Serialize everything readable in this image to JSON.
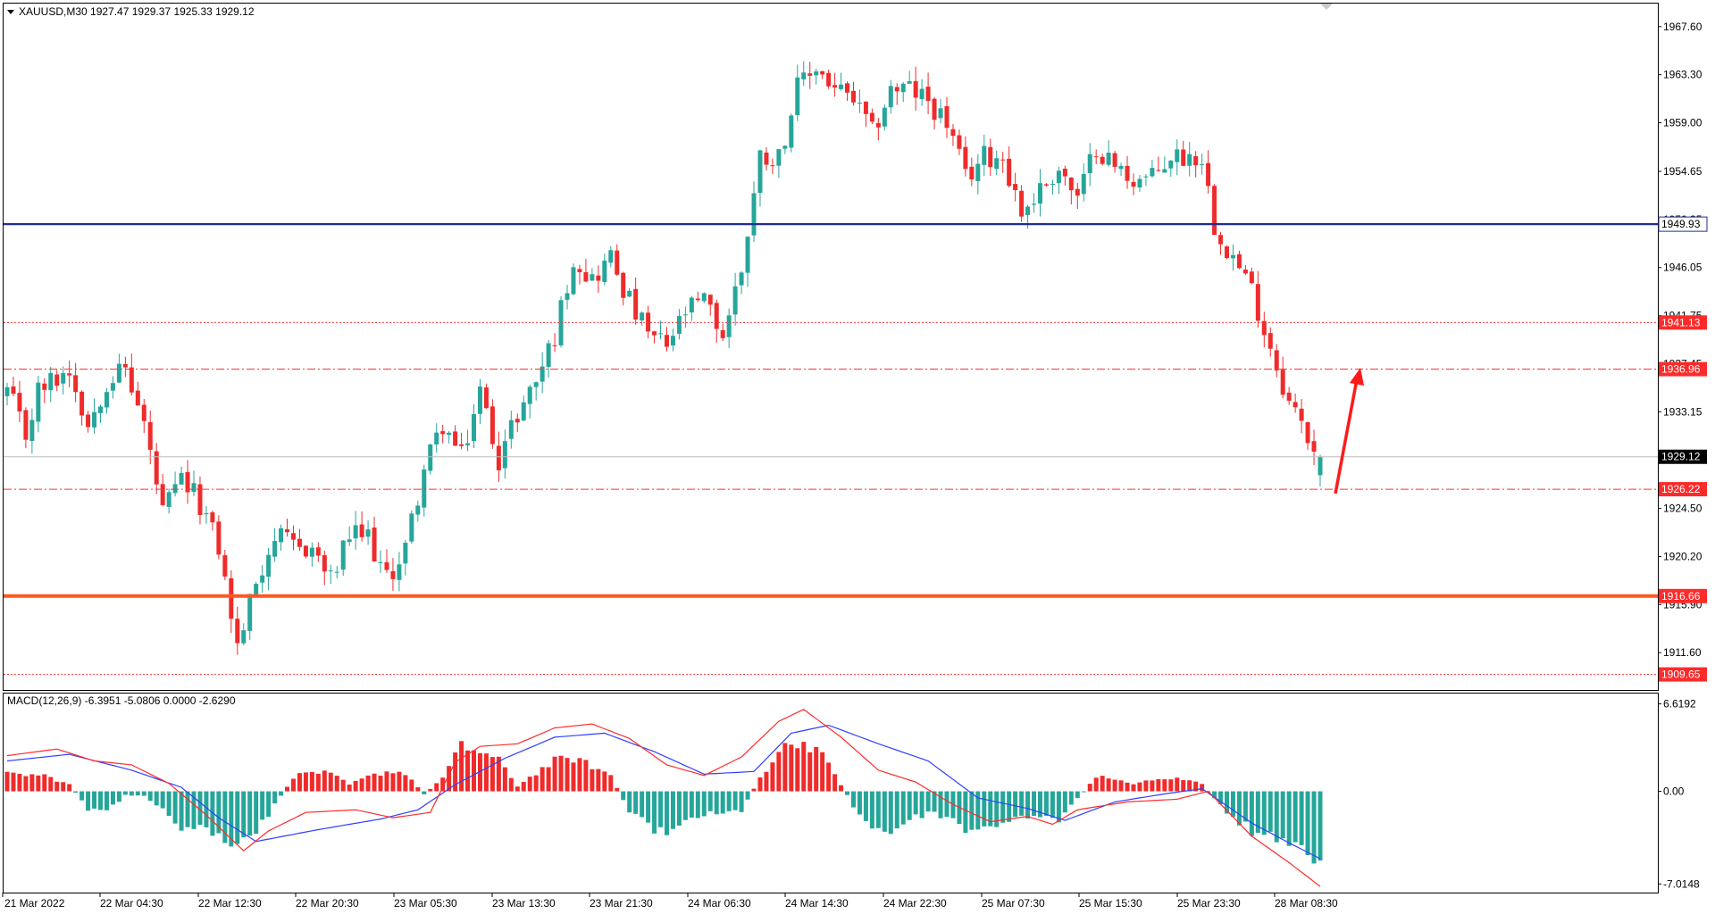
{
  "header": {
    "symbol_label": "XAUUSD,M30  1927.47 1929.37 1925.33 1929.12"
  },
  "colors": {
    "bull": "#26a69a",
    "bear": "#ef2b2b",
    "blue_line": "#1f2d8f",
    "orange_line": "#ff5722",
    "red_level": "#ff3333",
    "price_tag_bg": "#000000",
    "macd_signal": "#2f3fff",
    "macd_main": "#ff2a2a",
    "arrow": "#ff1a1a"
  },
  "chart_data": [
    {
      "type": "candlestick",
      "timeframe": "M30",
      "symbol": "XAUUSD",
      "ohlc_last": {
        "open": 1927.47,
        "high": 1929.37,
        "low": 1925.33,
        "close": 1929.12
      },
      "ylim": [
        1908.5,
        1969.5
      ],
      "y_ticks": [
        "1967.60",
        "1963.30",
        "1959.00",
        "1954.65",
        "1950.35",
        "1946.05",
        "1941.75",
        "1937.45",
        "1933.15",
        "1929.12",
        "1924.50",
        "1920.20",
        "1915.90",
        "1911.60"
      ],
      "x_ticks": [
        "21 Mar 2022",
        "22 Mar 04:30",
        "22 Mar 12:30",
        "22 Mar 20:30",
        "23 Mar 05:30",
        "23 Mar 13:30",
        "23 Mar 21:30",
        "24 Mar 06:30",
        "24 Mar 14:30",
        "24 Mar 22:30",
        "25 Mar 07:30",
        "25 Mar 15:30",
        "25 Mar 23:30",
        "28 Mar 08:30"
      ],
      "anchors": [
        [
          0,
          1935
        ],
        [
          3,
          1931
        ],
        [
          5,
          1935
        ],
        [
          10,
          1937
        ],
        [
          13,
          1932
        ],
        [
          16,
          1936
        ],
        [
          19,
          1937
        ],
        [
          22,
          1932
        ],
        [
          25,
          1924
        ],
        [
          28,
          1927
        ],
        [
          31,
          1925
        ],
        [
          34,
          1921
        ],
        [
          37,
          1912
        ],
        [
          40,
          1918
        ],
        [
          43,
          1922
        ],
        [
          46,
          1921
        ],
        [
          49,
          1921
        ],
        [
          52,
          1918
        ],
        [
          55,
          1922
        ],
        [
          58,
          1922
        ],
        [
          61,
          1918
        ],
        [
          64,
          1921
        ],
        [
          67,
          1928
        ],
        [
          70,
          1932
        ],
        [
          73,
          1929
        ],
        [
          76,
          1935
        ],
        [
          79,
          1929
        ],
        [
          82,
          1933
        ],
        [
          85,
          1936
        ],
        [
          88,
          1940
        ],
        [
          91,
          1947
        ],
        [
          94,
          1945
        ],
        [
          97,
          1947
        ],
        [
          100,
          1943
        ],
        [
          103,
          1940
        ],
        [
          106,
          1939
        ],
        [
          109,
          1942
        ],
        [
          112,
          1943
        ],
        [
          115,
          1940
        ],
        [
          118,
          1946
        ],
        [
          121,
          1956
        ],
        [
          124,
          1956
        ],
        [
          127,
          1962
        ],
        [
          130,
          1964
        ],
        [
          133,
          1962
        ],
        [
          136,
          1961
        ],
        [
          139,
          1958
        ],
        [
          142,
          1962
        ],
        [
          145,
          1962
        ],
        [
          148,
          1961
        ],
        [
          151,
          1959
        ],
        [
          154,
          1954
        ],
        [
          157,
          1956
        ],
        [
          160,
          1956
        ],
        [
          163,
          1951
        ],
        [
          166,
          1953
        ],
        [
          169,
          1955
        ],
        [
          172,
          1952
        ],
        [
          175,
          1957
        ],
        [
          178,
          1955
        ],
        [
          181,
          1954
        ],
        [
          184,
          1954
        ],
        [
          187,
          1956
        ],
        [
          190,
          1956
        ],
        [
          192,
          1956
        ],
        [
          194,
          1950
        ],
        [
          197,
          1947
        ],
        [
          200,
          1944
        ],
        [
          203,
          1939
        ],
        [
          206,
          1934
        ],
        [
          209,
          1931
        ],
        [
          211,
          1929
        ]
      ],
      "levels": [
        {
          "price": 1949.93,
          "label": "1949.93",
          "style": "solid",
          "color": "blue_line",
          "tag": "plain"
        },
        {
          "price": 1941.13,
          "label": "1941.13",
          "style": "dotted",
          "color": "red_level",
          "tag": "red"
        },
        {
          "price": 1936.96,
          "label": "1936.96",
          "style": "dashdot",
          "color": "red_level",
          "tag": "red"
        },
        {
          "price": 1929.12,
          "label": "1929.12",
          "style": "solid-grey",
          "color": "price_tag_bg",
          "tag": "black"
        },
        {
          "price": 1926.22,
          "label": "1926.22",
          "style": "dashdot",
          "color": "red_level",
          "tag": "red"
        },
        {
          "price": 1916.66,
          "label": "1916.66",
          "style": "thick",
          "color": "orange_line",
          "tag": "red"
        },
        {
          "price": 1909.65,
          "label": "1909.65",
          "style": "dotted",
          "color": "red_level",
          "tag": "red"
        }
      ]
    },
    {
      "type": "macd",
      "label": "MACD(12,26,9) -6.3951 -5.0806 0.0000 -2.6290",
      "ylim": [
        -7.6,
        7.2
      ],
      "y_ticks": [
        "6.6192",
        "0.00",
        "-7.0148"
      ],
      "hist_anchors": [
        [
          0,
          1.3
        ],
        [
          6,
          1.2
        ],
        [
          10,
          0.5
        ],
        [
          13,
          -1.3
        ],
        [
          16,
          -1.6
        ],
        [
          19,
          -0.3
        ],
        [
          22,
          -0.3
        ],
        [
          25,
          -1.5
        ],
        [
          28,
          -3.3
        ],
        [
          31,
          -2.6
        ],
        [
          34,
          -3.4
        ],
        [
          37,
          -4.4
        ],
        [
          40,
          -3.2
        ],
        [
          43,
          -1.0
        ],
        [
          46,
          1.1
        ],
        [
          49,
          1.5
        ],
        [
          52,
          1.3
        ],
        [
          55,
          0.5
        ],
        [
          58,
          1.1
        ],
        [
          61,
          1.5
        ],
        [
          64,
          1.4
        ],
        [
          67,
          -0.2
        ],
        [
          70,
          1.0
        ],
        [
          73,
          3.4
        ],
        [
          76,
          3.0
        ],
        [
          79,
          2.3
        ],
        [
          82,
          0.4
        ],
        [
          85,
          1.4
        ],
        [
          88,
          2.3
        ],
        [
          91,
          2.5
        ],
        [
          94,
          1.9
        ],
        [
          97,
          1.2
        ],
        [
          100,
          -1.6
        ],
        [
          103,
          -2.6
        ],
        [
          106,
          -3.2
        ],
        [
          109,
          -2.1
        ],
        [
          112,
          -1.8
        ],
        [
          115,
          -1.6
        ],
        [
          118,
          -1.4
        ],
        [
          121,
          1.0
        ],
        [
          124,
          3.1
        ],
        [
          127,
          3.8
        ],
        [
          130,
          3.3
        ],
        [
          133,
          1.3
        ],
        [
          136,
          -1.1
        ],
        [
          139,
          -2.8
        ],
        [
          142,
          -3.0
        ],
        [
          145,
          -2.2
        ],
        [
          148,
          -1.6
        ],
        [
          151,
          -1.9
        ],
        [
          154,
          -2.9
        ],
        [
          157,
          -2.8
        ],
        [
          160,
          -2.3
        ],
        [
          163,
          -1.8
        ],
        [
          166,
          -2.1
        ],
        [
          169,
          -2.1
        ],
        [
          172,
          -0.6
        ],
        [
          175,
          1.2
        ],
        [
          178,
          0.8
        ],
        [
          181,
          0.6
        ],
        [
          184,
          0.8
        ],
        [
          187,
          1.0
        ],
        [
          190,
          0.8
        ],
        [
          192,
          0.6
        ],
        [
          194,
          -0.6
        ],
        [
          197,
          -2.0
        ],
        [
          200,
          -3.0
        ],
        [
          203,
          -3.6
        ],
        [
          206,
          -4.3
        ],
        [
          209,
          -4.7
        ],
        [
          211,
          -4.9
        ]
      ],
      "signal_anchors": [
        [
          0,
          2.3
        ],
        [
          10,
          2.8
        ],
        [
          20,
          1.6
        ],
        [
          28,
          0.3
        ],
        [
          34,
          -2.0
        ],
        [
          40,
          -3.8
        ],
        [
          50,
          -2.9
        ],
        [
          60,
          -2.1
        ],
        [
          66,
          -1.4
        ],
        [
          72,
          0.5
        ],
        [
          80,
          2.5
        ],
        [
          88,
          4.1
        ],
        [
          96,
          4.4
        ],
        [
          104,
          3.0
        ],
        [
          112,
          1.3
        ],
        [
          120,
          1.5
        ],
        [
          126,
          4.4
        ],
        [
          132,
          5.0
        ],
        [
          140,
          3.6
        ],
        [
          148,
          2.3
        ],
        [
          156,
          -0.5
        ],
        [
          164,
          -1.3
        ],
        [
          170,
          -2.2
        ],
        [
          178,
          -0.8
        ],
        [
          186,
          -0.2
        ],
        [
          192,
          0.2
        ],
        [
          200,
          -2.4
        ],
        [
          206,
          -3.9
        ],
        [
          211,
          -5.1
        ]
      ],
      "main_anchors": [
        [
          0,
          2.7
        ],
        [
          8,
          3.2
        ],
        [
          14,
          2.3
        ],
        [
          20,
          2.0
        ],
        [
          26,
          0.6
        ],
        [
          32,
          -1.8
        ],
        [
          38,
          -4.5
        ],
        [
          42,
          -3.0
        ],
        [
          48,
          -1.6
        ],
        [
          56,
          -1.4
        ],
        [
          62,
          -2.0
        ],
        [
          68,
          -1.6
        ],
        [
          72,
          2.2
        ],
        [
          76,
          3.4
        ],
        [
          82,
          3.6
        ],
        [
          88,
          4.8
        ],
        [
          94,
          5.1
        ],
        [
          100,
          4.0
        ],
        [
          106,
          2.0
        ],
        [
          112,
          1.2
        ],
        [
          118,
          2.6
        ],
        [
          124,
          5.3
        ],
        [
          128,
          6.2
        ],
        [
          134,
          4.1
        ],
        [
          140,
          1.6
        ],
        [
          146,
          0.7
        ],
        [
          152,
          -1.0
        ],
        [
          158,
          -2.3
        ],
        [
          164,
          -1.9
        ],
        [
          168,
          -2.5
        ],
        [
          172,
          -1.4
        ],
        [
          180,
          -0.8
        ],
        [
          188,
          -0.6
        ],
        [
          193,
          0.0
        ],
        [
          200,
          -3.4
        ],
        [
          206,
          -5.4
        ],
        [
          211,
          -7.2
        ]
      ]
    }
  ]
}
